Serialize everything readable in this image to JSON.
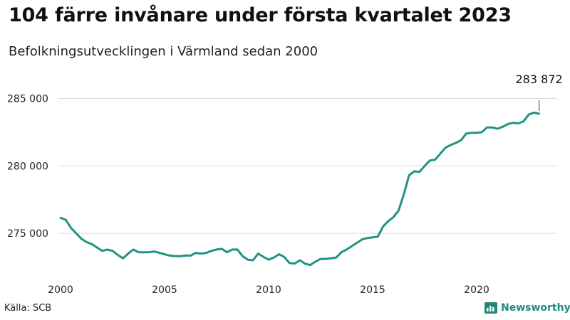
{
  "header": {
    "title": "104 färre invånare under första kvartalet 2023",
    "subtitle": "Befolkningsutvecklingen i Värmland sedan 2000"
  },
  "footer": {
    "source": "Källa: SCB",
    "brand": "Newsworthy"
  },
  "colors": {
    "line": "#1f9480",
    "grid": "#dddddd",
    "brand": "#1f8a7c"
  },
  "chart_data": {
    "type": "line",
    "title": "104 färre invånare under första kvartalet 2023",
    "subtitle": "Befolkningsutvecklingen i Värmland sedan 2000",
    "xlabel": "",
    "ylabel": "",
    "xlim": [
      2000,
      2023.25
    ],
    "ylim": [
      272000,
      286500
    ],
    "x_ticks": [
      2000,
      2005,
      2010,
      2015,
      2020
    ],
    "x_tick_labels": [
      "2000",
      "2005",
      "2010",
      "2015",
      "2020"
    ],
    "y_ticks": [
      275000,
      280000,
      285000
    ],
    "y_tick_labels": [
      "275 000",
      "280 000",
      "285 000"
    ],
    "grid": "horizontal",
    "annotation": {
      "label": "283 872",
      "x": 2023.0,
      "y": 283872
    },
    "series": [
      {
        "x": [
          2000.0,
          2000.25,
          2000.5,
          2000.75,
          2001.0,
          2001.25,
          2001.5,
          2001.75,
          2002.0,
          2002.25,
          2002.5,
          2002.75,
          2003.0,
          2003.25,
          2003.5,
          2003.75,
          2004.0,
          2004.25,
          2004.5,
          2004.75,
          2005.0,
          2005.25,
          2005.5,
          2005.75,
          2006.0,
          2006.25,
          2006.5,
          2006.75,
          2007.0,
          2007.25,
          2007.5,
          2007.75,
          2008.0,
          2008.25,
          2008.5,
          2008.75,
          2009.0,
          2009.25,
          2009.5,
          2009.75,
          2010.0,
          2010.25,
          2010.5,
          2010.75,
          2011.0,
          2011.25,
          2011.5,
          2011.75,
          2012.0,
          2012.25,
          2012.5,
          2012.75,
          2013.0,
          2013.25,
          2013.5,
          2013.75,
          2014.0,
          2014.25,
          2014.5,
          2014.75,
          2015.0,
          2015.25,
          2015.5,
          2015.75,
          2016.0,
          2016.25,
          2016.5,
          2016.75,
          2017.0,
          2017.25,
          2017.5,
          2017.75,
          2018.0,
          2018.25,
          2018.5,
          2018.75,
          2019.0,
          2019.25,
          2019.5,
          2019.75,
          2020.0,
          2020.25,
          2020.5,
          2020.75,
          2021.0,
          2021.25,
          2021.5,
          2021.75,
          2022.0,
          2022.25,
          2022.5,
          2022.75,
          2023.0
        ],
        "y": [
          276150,
          276000,
          275400,
          275000,
          274600,
          274350,
          274200,
          273950,
          273700,
          273800,
          273700,
          273400,
          273150,
          273500,
          273800,
          273600,
          273600,
          273600,
          273650,
          273550,
          273450,
          273350,
          273300,
          273300,
          273350,
          273350,
          273550,
          273500,
          273550,
          273700,
          273800,
          273850,
          273600,
          273800,
          273800,
          273300,
          273050,
          273000,
          273500,
          273250,
          273050,
          273200,
          273450,
          273250,
          272800,
          272750,
          273000,
          272750,
          272650,
          272900,
          273100,
          273100,
          273150,
          273200,
          273600,
          273800,
          274050,
          274300,
          274550,
          274650,
          274700,
          274750,
          275500,
          275900,
          276200,
          276700,
          277900,
          279300,
          279600,
          279550,
          280000,
          280400,
          280450,
          280900,
          281350,
          281550,
          281700,
          281900,
          282400,
          282450,
          282450,
          282500,
          282850,
          282850,
          282750,
          282900,
          283100,
          283200,
          283150,
          283300,
          283800,
          283950,
          283872
        ]
      }
    ]
  }
}
